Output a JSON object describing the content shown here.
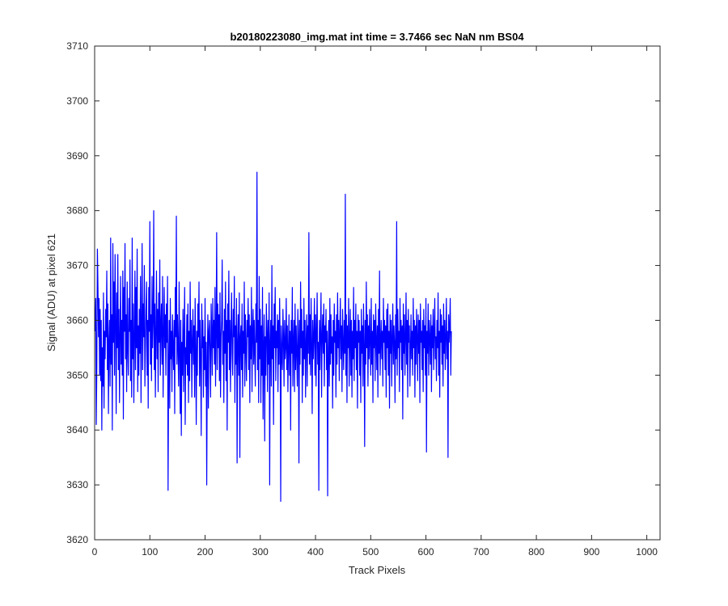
{
  "chart_data": {
    "type": "line",
    "title": "b20180223080_img.mat int time = 3.7466 sec  NaN nm BS04",
    "xlabel": "Track Pixels",
    "ylabel": "Signal (ADU) at pixel 621",
    "xlim": [
      0,
      1024
    ],
    "ylim": [
      3620,
      3710
    ],
    "xticks": [
      0,
      100,
      200,
      300,
      400,
      500,
      600,
      700,
      800,
      900,
      1000
    ],
    "yticks": [
      3620,
      3630,
      3640,
      3650,
      3660,
      3670,
      3680,
      3690,
      3700,
      3710
    ],
    "grid": false,
    "legend": "none",
    "line_color": "#0000ff",
    "series": [
      {
        "x_start": 1,
        "x_step": 1,
        "values": [
          3658,
          3664,
          3641,
          3652,
          3673,
          3666,
          3657,
          3664,
          3650,
          3662,
          3649,
          3660,
          3640,
          3655,
          3648,
          3665,
          3644,
          3658,
          3653,
          3662,
          3657,
          3669,
          3651,
          3663,
          3643,
          3656,
          3660,
          3648,
          3675,
          3652,
          3661,
          3640,
          3674,
          3656,
          3667,
          3650,
          3672,
          3660,
          3643,
          3665,
          3655,
          3672,
          3651,
          3662,
          3645,
          3657,
          3668,
          3652,
          3660,
          3650,
          3669,
          3642,
          3666,
          3658,
          3674,
          3653,
          3661,
          3647,
          3667,
          3655,
          3650,
          3664,
          3658,
          3671,
          3649,
          3660,
          3646,
          3675,
          3653,
          3663,
          3645,
          3657,
          3669,
          3651,
          3666,
          3655,
          3673,
          3647,
          3659,
          3650,
          3662,
          3654,
          3668,
          3645,
          3659,
          3674,
          3651,
          3663,
          3657,
          3670,
          3648,
          3655,
          3662,
          3667,
          3650,
          3660,
          3644,
          3666,
          3658,
          3678,
          3652,
          3661,
          3649,
          3668,
          3655,
          3660,
          3680,
          3651,
          3663,
          3646,
          3658,
          3669,
          3653,
          3662,
          3647,
          3665,
          3656,
          3671,
          3650,
          3659,
          3663,
          3652,
          3668,
          3646,
          3657,
          3666,
          3655,
          3661,
          3650,
          3663,
          3656,
          3668,
          3629,
          3651,
          3660,
          3644,
          3664,
          3653,
          3658,
          3647,
          3661,
          3655,
          3651,
          3660,
          3643,
          3666,
          3657,
          3679,
          3652,
          3661,
          3655,
          3648,
          3667,
          3654,
          3643,
          3660,
          3639,
          3656,
          3650,
          3662,
          3647,
          3657,
          3666,
          3641,
          3655,
          3652,
          3661,
          3650,
          3663,
          3645,
          3658,
          3649,
          3667,
          3654,
          3660,
          3646,
          3656,
          3662,
          3652,
          3659,
          3646,
          3664,
          3655,
          3641,
          3658,
          3650,
          3663,
          3657,
          3667,
          3648,
          3660,
          3653,
          3639,
          3663,
          3655,
          3660,
          3646,
          3657,
          3651,
          3664,
          3648,
          3656,
          3630,
          3652,
          3661,
          3644,
          3658,
          3660,
          3654,
          3646,
          3663,
          3658,
          3650,
          3664,
          3655,
          3660,
          3652,
          3666,
          3648,
          3657,
          3676,
          3651,
          3663,
          3655,
          3661,
          3649,
          3665,
          3646,
          3657,
          3660,
          3671,
          3652,
          3658,
          3645,
          3662,
          3654,
          3667,
          3649,
          3660,
          3640,
          3663,
          3656,
          3669,
          3651,
          3660,
          3647,
          3658,
          3665,
          3654,
          3650,
          3662,
          3657,
          3668,
          3645,
          3659,
          3652,
          3664,
          3634,
          3656,
          3661,
          3650,
          3665,
          3635,
          3657,
          3659,
          3651,
          3663,
          3646,
          3658,
          3654,
          3667,
          3648,
          3661,
          3655,
          3649,
          3660,
          3657,
          3664,
          3651,
          3661,
          3645,
          3659,
          3653,
          3666,
          3647,
          3658,
          3662,
          3652,
          3660,
          3654,
          3648,
          3663,
          3656,
          3687,
          3651,
          3660,
          3645,
          3668,
          3653,
          3662,
          3645,
          3659,
          3650,
          3666,
          3642,
          3655,
          3661,
          3638,
          3657,
          3650,
          3663,
          3658,
          3647,
          3660,
          3652,
          3665,
          3630,
          3656,
          3660,
          3648,
          3670,
          3653,
          3659,
          3641,
          3663,
          3655,
          3666,
          3649,
          3658,
          3655,
          3661,
          3647,
          3660,
          3652,
          3664,
          3656,
          3627,
          3659,
          3654,
          3651,
          3662,
          3657,
          3648,
          3660,
          3653,
          3655,
          3664,
          3651,
          3659,
          3647,
          3655,
          3661,
          3650,
          3658,
          3640,
          3660,
          3654,
          3666,
          3648,
          3656,
          3660,
          3647,
          3663,
          3651,
          3659,
          3654,
          3648,
          3662,
          3657,
          3634,
          3660,
          3652,
          3667,
          3655,
          3662,
          3645,
          3658,
          3650,
          3664,
          3653,
          3660,
          3646,
          3656,
          3661,
          3648,
          3659,
          3654,
          3676,
          3652,
          3661,
          3650,
          3664,
          3656,
          3643,
          3660,
          3653,
          3657,
          3664,
          3650,
          3661,
          3648,
          3658,
          3665,
          3652,
          3656,
          3629,
          3660,
          3651,
          3658,
          3665,
          3646,
          3657,
          3661,
          3654,
          3663,
          3648,
          3659,
          3656,
          3662,
          3651,
          3658,
          3628,
          3655,
          3660,
          3648,
          3664,
          3652,
          3661,
          3654,
          3657,
          3644,
          3660,
          3650,
          3663,
          3656,
          3658,
          3646,
          3661,
          3652,
          3665,
          3655,
          3660,
          3649,
          3658,
          3664,
          3653,
          3659,
          3647,
          3662,
          3656,
          3651,
          3660,
          3654,
          3683,
          3650,
          3661,
          3645,
          3659,
          3655,
          3664,
          3648,
          3657,
          3662,
          3650,
          3660,
          3646,
          3658,
          3653,
          3666,
          3649,
          3660,
          3655,
          3663,
          3651,
          3658,
          3644,
          3661,
          3656,
          3660,
          3650,
          3658,
          3645,
          3662,
          3654,
          3659,
          3648,
          3663,
          3656,
          3637,
          3660,
          3652,
          3667,
          3655,
          3661,
          3648,
          3659,
          3653,
          3662,
          3656,
          3650,
          3664,
          3652,
          3658,
          3645,
          3661,
          3655,
          3660,
          3649,
          3663,
          3657,
          3651,
          3659,
          3646,
          3662,
          3654,
          3669,
          3650,
          3656,
          3660,
          3653,
          3658,
          3648,
          3664,
          3656,
          3660,
          3651,
          3659,
          3646,
          3662,
          3655,
          3663,
          3650,
          3658,
          3644,
          3661,
          3654,
          3660,
          3648,
          3657,
          3663,
          3652,
          3659,
          3656,
          3645,
          3661,
          3653,
          3678,
          3650,
          3662,
          3655,
          3658,
          3647,
          3664,
          3656,
          3660,
          3651,
          3659,
          3642,
          3663,
          3654,
          3661,
          3650,
          3657,
          3665,
          3652,
          3660,
          3646,
          3662,
          3656,
          3659,
          3648,
          3655,
          3661,
          3653,
          3658,
          3650,
          3664,
          3655,
          3660,
          3646,
          3659,
          3652,
          3662,
          3657,
          3649,
          3661,
          3654,
          3660,
          3645,
          3663,
          3656,
          3658,
          3651,
          3660,
          3647,
          3662,
          3655,
          3659,
          3650,
          3664,
          3636,
          3658,
          3654,
          3663,
          3650,
          3660,
          3657,
          3652,
          3661,
          3647,
          3659,
          3655,
          3662,
          3651,
          3658,
          3664,
          3653,
          3657,
          3649,
          3660,
          3655,
          3665,
          3650,
          3658,
          3646,
          3662,
          3656,
          3661,
          3652,
          3659,
          3648,
          3663,
          3654,
          3660,
          3651,
          3657,
          3664,
          3653,
          3658,
          3635,
          3661,
          3656,
          3659,
          3664,
          3650,
          3658
        ]
      }
    ]
  }
}
